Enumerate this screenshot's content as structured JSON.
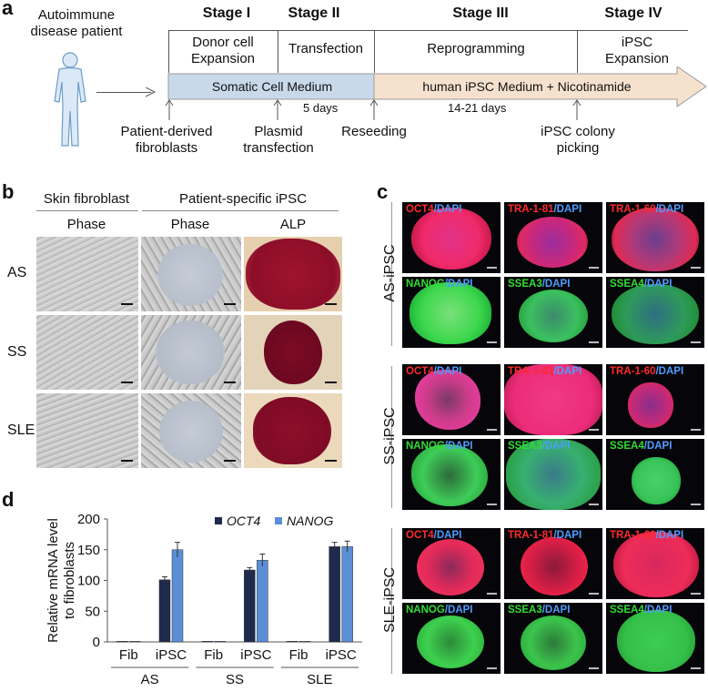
{
  "panel_a": {
    "label": "a",
    "patient": "Autoimmune disease patient",
    "stages": [
      {
        "title": "Stage I",
        "desc": "Donor cell Expansion"
      },
      {
        "title": "Stage II",
        "desc": "Transfection"
      },
      {
        "title": "Stage III",
        "desc": "Reprogramming"
      },
      {
        "title": "Stage IV",
        "desc": "iPSC Expansion"
      }
    ],
    "medium_somatic": "Somatic Cell Medium",
    "medium_ipsc": "human iPSC Medium + Nicotinamide",
    "duration_1": "5 days",
    "duration_2": "14-21 days",
    "events": [
      "Patient-derived fibroblasts",
      "Plasmid transfection",
      "Reseeding",
      "iPSC colony picking"
    ],
    "colors": {
      "somatic_box": "#c9d9ea",
      "ipsc_arrow": "#f6e1cf",
      "arrow_border": "#9a9a9a"
    }
  },
  "panel_b": {
    "label": "b",
    "group_fibroblast": "Skin fibroblast",
    "group_ipsc": "Patient-specific iPSC",
    "columns": [
      "Phase",
      "Phase",
      "ALP"
    ],
    "rows": [
      "AS",
      "SS",
      "SLE"
    ]
  },
  "panel_c": {
    "label": "c",
    "groups": [
      {
        "name": "AS-iPSC",
        "row1": [
          {
            "marker": "OCT4",
            "dapi": "/DAPI"
          },
          {
            "marker": "TRA-1-81",
            "dapi": "/DAPI"
          },
          {
            "marker": "TRA-1-60",
            "dapi": "/DAPI"
          }
        ],
        "row2": [
          {
            "marker": "NANOG",
            "dapi": "/DAPI"
          },
          {
            "marker": "SSEA3",
            "dapi": "/DAPI"
          },
          {
            "marker": "SSEA4",
            "dapi": "/DAPI"
          }
        ]
      },
      {
        "name": "SS-iPSC",
        "row1": [
          {
            "marker": "OCT4",
            "dapi": "/DAPI"
          },
          {
            "marker": "TRA-1-81",
            "dapi": "/DAPI"
          },
          {
            "marker": "TRA-1-60",
            "dapi": "/DAPI"
          }
        ],
        "row2": [
          {
            "marker": "NANOG",
            "dapi": "/DAPI"
          },
          {
            "marker": "SSEA3",
            "dapi": "/DAPI"
          },
          {
            "marker": "SSEA4",
            "dapi": "/DAPI"
          }
        ]
      },
      {
        "name": "SLE-iPSC",
        "row1": [
          {
            "marker": "OCT4",
            "dapi": "/DAPI"
          },
          {
            "marker": "TRA-1-81",
            "dapi": "/DAPI"
          },
          {
            "marker": "TRA-1-60",
            "dapi": "/DAPI"
          }
        ],
        "row2": [
          {
            "marker": "NANOG",
            "dapi": "/DAPI"
          },
          {
            "marker": "SSEA3",
            "dapi": "/DAPI"
          },
          {
            "marker": "SSEA4",
            "dapi": "/DAPI"
          }
        ]
      }
    ],
    "colors": {
      "red_marker": "#ff2a2a",
      "green_marker": "#33dd33",
      "dapi": "#4f9cff"
    }
  },
  "panel_d": {
    "label": "d"
  },
  "chart_data": {
    "type": "bar",
    "title": "",
    "ylabel": "Relative mRNA level to fibroblasts",
    "ylim": [
      0,
      200
    ],
    "yticks": [
      0,
      50,
      100,
      150,
      200
    ],
    "categories": [
      "Fib",
      "iPSC",
      "Fib",
      "iPSC",
      "Fib",
      "iPSC"
    ],
    "groups": [
      "AS",
      "SS",
      "SLE"
    ],
    "series": [
      {
        "name": "OCT4",
        "color": "#1f2b4d",
        "values": [
          1,
          101,
          1,
          117,
          1,
          155
        ],
        "errors": [
          0,
          5,
          0,
          4,
          0,
          7
        ]
      },
      {
        "name": "NANOG",
        "color": "#5a8fd6",
        "values": [
          1,
          150,
          1,
          133,
          1,
          155
        ],
        "errors": [
          0,
          12,
          0,
          10,
          0,
          9
        ]
      }
    ],
    "grid": false,
    "legend": "top"
  }
}
